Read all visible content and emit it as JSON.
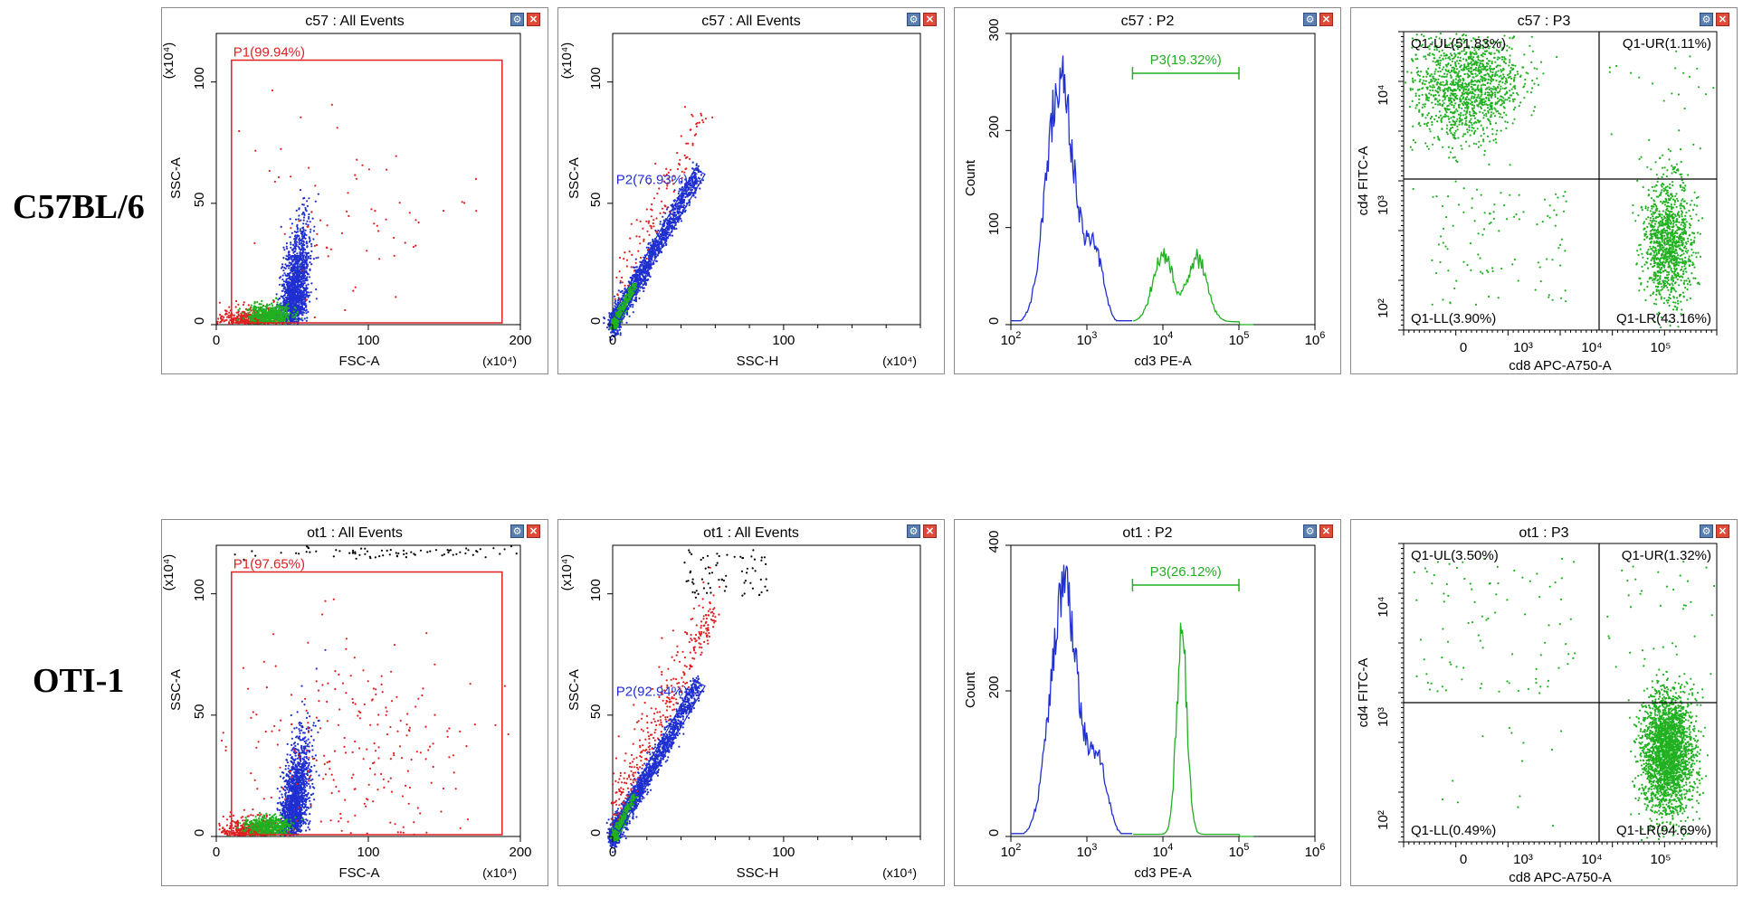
{
  "row_labels": [
    "C57BL/6",
    "OTI-1"
  ],
  "colors": {
    "gate_p1": "#e02020",
    "gate_p2": "#1f2fd0",
    "gate_p3": "#20b020",
    "quad": "#20b020",
    "axis": "#000000",
    "hist_p2": "#1f2fd0",
    "hist_p3": "#20b020"
  },
  "icons": [
    "options-icon",
    "close-icon"
  ],
  "chart_data": [
    {
      "id": "c57-fsc-ssc",
      "type": "scatter",
      "title": "c57 : All Events",
      "xlabel": "FSC-A",
      "ylabel": "SSC-A",
      "xunit": "(x10⁴)",
      "yunit": "(x10⁴)",
      "xlim": [
        0,
        200
      ],
      "ylim": [
        0,
        120
      ],
      "xticks": [
        "0",
        "100",
        "200"
      ],
      "yticks": [
        "0",
        "50",
        "100"
      ],
      "gate": {
        "name": "P1",
        "label": "P1(99.94%)",
        "percent": 99.94,
        "x_range": [
          10,
          188
        ],
        "y_range": [
          0,
          109
        ]
      }
    },
    {
      "id": "c57-ssch-ssca",
      "type": "scatter",
      "title": "c57 : All Events",
      "xlabel": "SSC-H",
      "ylabel": "SSC-A",
      "xunit": "(x10⁴)",
      "yunit": "(x10⁴)",
      "xlim": [
        0,
        180
      ],
      "ylim": [
        0,
        120
      ],
      "xticks": [
        "0",
        "100"
      ],
      "yticks": [
        "0",
        "50",
        "100"
      ],
      "gate": {
        "name": "P2",
        "label": "P2(76.93%)",
        "percent": 76.93
      }
    },
    {
      "id": "c57-cd3-hist",
      "type": "histogram",
      "title": "c57 : P2",
      "xlabel": "cd3 PE-A",
      "ylabel": "Count",
      "xlim_log10": [
        2,
        6
      ],
      "ylim": [
        0,
        300
      ],
      "xticks": [
        "2",
        "3",
        "4",
        "5",
        "6"
      ],
      "yticks": [
        "0",
        "100",
        "200",
        "300"
      ],
      "peaks": [
        {
          "log10_x": 2.65,
          "count": 255
        },
        {
          "log10_x": 4.0,
          "count": 70
        },
        {
          "log10_x": 4.45,
          "count": 65
        }
      ],
      "marker": {
        "name": "P3",
        "label": "P3(19.32%)",
        "percent": 19.32,
        "log10_range": [
          3.6,
          5.0
        ]
      }
    },
    {
      "id": "c57-cd8-cd4",
      "type": "scatter",
      "title": "c57 : P3",
      "xlabel": "cd8 APC-A750-A",
      "ylabel": "cd4 FITC-A",
      "xticks": [
        "0",
        "10³",
        "10⁴",
        "10⁵"
      ],
      "yticks": [
        "10²",
        "10³",
        "10⁴"
      ],
      "quadrants": [
        {
          "name": "Q1-UL",
          "label": "Q1-UL(51.83%)",
          "percent": 51.83
        },
        {
          "name": "Q1-UR",
          "label": "Q1-UR(1.11%)",
          "percent": 1.11
        },
        {
          "name": "Q1-LL",
          "label": "Q1-LL(3.90%)",
          "percent": 3.9
        },
        {
          "name": "Q1-LR",
          "label": "Q1-LR(43.16%)",
          "percent": 43.16
        }
      ]
    },
    {
      "id": "ot1-fsc-ssc",
      "type": "scatter",
      "title": "ot1 : All Events",
      "xlabel": "FSC-A",
      "ylabel": "SSC-A",
      "xunit": "(x10⁴)",
      "yunit": "(x10⁴)",
      "xlim": [
        0,
        200
      ],
      "ylim": [
        0,
        120
      ],
      "xticks": [
        "0",
        "100",
        "200"
      ],
      "yticks": [
        "0",
        "50",
        "100"
      ],
      "gate": {
        "name": "P1",
        "label": "P1(97.65%)",
        "percent": 97.65,
        "x_range": [
          10,
          188
        ],
        "y_range": [
          0,
          109
        ]
      }
    },
    {
      "id": "ot1-ssch-ssca",
      "type": "scatter",
      "title": "ot1 : All Events",
      "xlabel": "SSC-H",
      "ylabel": "SSC-A",
      "xunit": "(x10⁴)",
      "yunit": "(x10⁴)",
      "xlim": [
        0,
        180
      ],
      "ylim": [
        0,
        120
      ],
      "xticks": [
        "0",
        "100"
      ],
      "yticks": [
        "0",
        "50",
        "100"
      ],
      "gate": {
        "name": "P2",
        "label": "P2(92.94%)",
        "percent": 92.94
      }
    },
    {
      "id": "ot1-cd3-hist",
      "type": "histogram",
      "title": "ot1 : P2",
      "xlabel": "cd3 PE-A",
      "ylabel": "Count",
      "xlim_log10": [
        2,
        6
      ],
      "ylim": [
        0,
        400
      ],
      "xticks": [
        "2",
        "3",
        "4",
        "5",
        "6"
      ],
      "yticks": [
        "0",
        "200",
        "400"
      ],
      "peaks": [
        {
          "log10_x": 2.7,
          "count": 340
        },
        {
          "log10_x": 4.25,
          "count": 265
        }
      ],
      "marker": {
        "name": "P3",
        "label": "P3(26.12%)",
        "percent": 26.12,
        "log10_range": [
          3.6,
          5.0
        ]
      }
    },
    {
      "id": "ot1-cd8-cd4",
      "type": "scatter",
      "title": "ot1 : P3",
      "xlabel": "cd8 APC-A750-A",
      "ylabel": "cd4 FITC-A",
      "xticks": [
        "0",
        "10³",
        "10⁴",
        "10⁵"
      ],
      "yticks": [
        "10²",
        "10³",
        "10⁴"
      ],
      "quadrants": [
        {
          "name": "Q1-UL",
          "label": "Q1-UL(3.50%)",
          "percent": 3.5
        },
        {
          "name": "Q1-UR",
          "label": "Q1-UR(1.32%)",
          "percent": 1.32
        },
        {
          "name": "Q1-LL",
          "label": "Q1-LL(0.49%)",
          "percent": 0.49
        },
        {
          "name": "Q1-LR",
          "label": "Q1-LR(94.69%)",
          "percent": 94.69
        }
      ]
    }
  ]
}
